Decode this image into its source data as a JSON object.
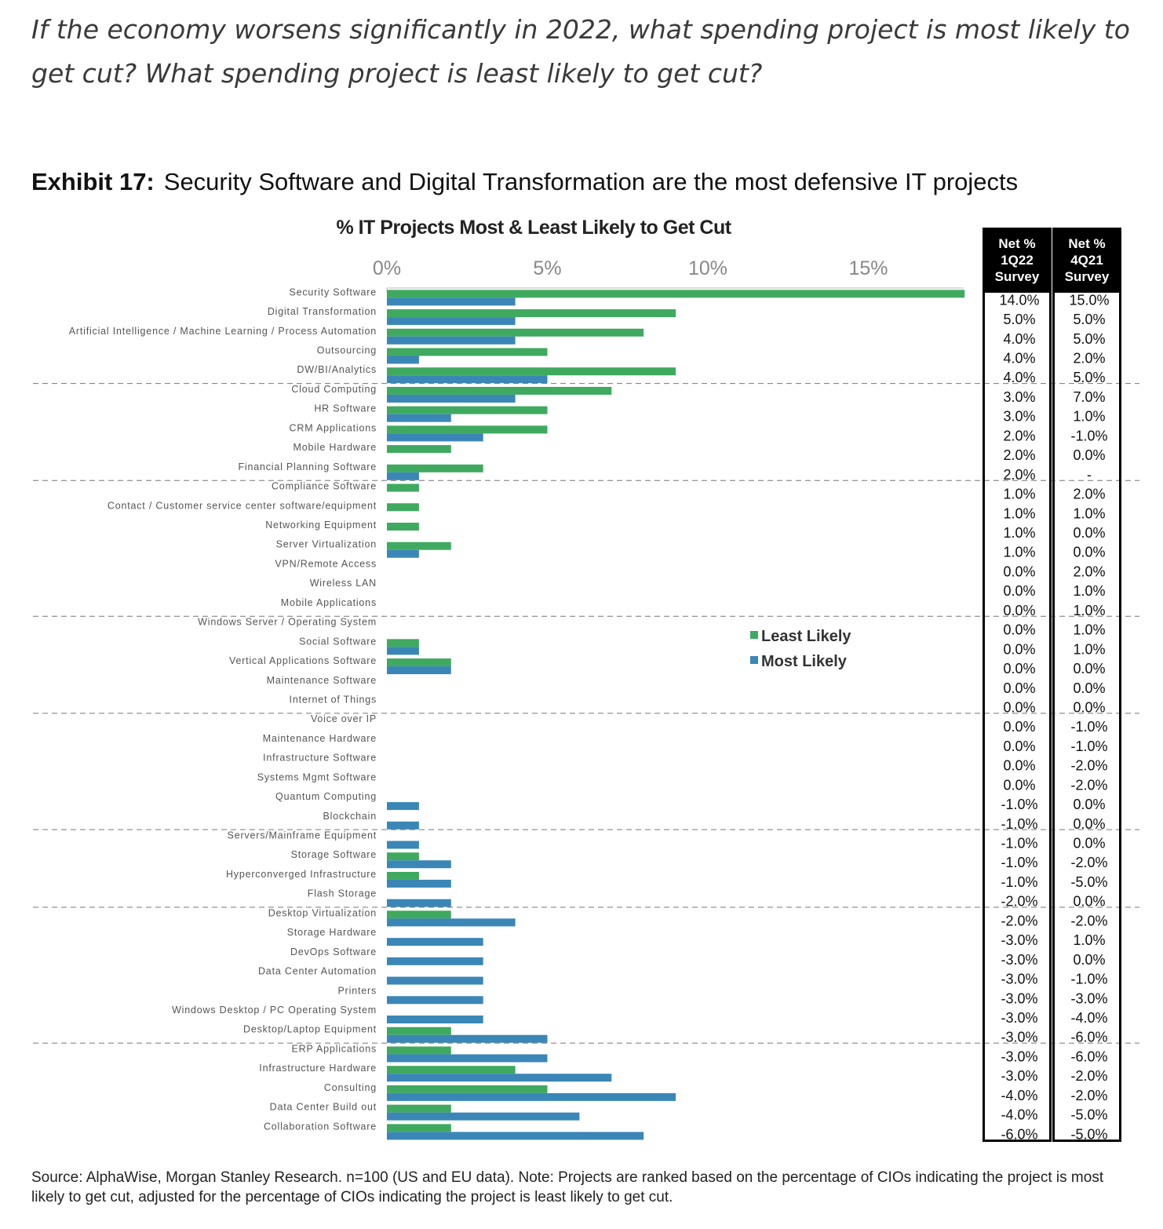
{
  "question": "If the economy worsens significantly in 2022, what spending project is most likely to get cut? What spending project is least likely to get cut?",
  "exhibit": {
    "number": "Exhibit 17:",
    "title": "Security Software and Digital Transformation are the most defensive IT projects"
  },
  "colors": {
    "least_likely": "#3faa5f",
    "most_likely": "#3a87b7"
  },
  "table": {
    "headers": [
      [
        "Net %",
        "1Q22",
        "Survey"
      ],
      [
        "Net %",
        "4Q21",
        "Survey"
      ]
    ]
  },
  "source": "Source: AlphaWise, Morgan Stanley Research. n=100 (US and EU data). Note: Projects are ranked based on the percentage of CIOs indicating the project is most likely to get cut, adjusted for the percentage of CIOs indicating the project is least likely to get cut.",
  "chart_data": {
    "type": "bar",
    "orientation": "horizontal",
    "title": "% IT Projects Most & Least Likely to Get Cut",
    "xlim": [
      0,
      18
    ],
    "xticks": [
      "0%",
      "5%",
      "10%",
      "15%"
    ],
    "xtick_values": [
      0,
      5,
      10,
      15
    ],
    "legend_position": "center-right",
    "group_separators_after": [
      5,
      10,
      17,
      22,
      28,
      32,
      39
    ],
    "categories": [
      "Security Software",
      "Digital Transformation",
      "Artificial Intelligence / Machine Learning / Process Automation",
      "Outsourcing",
      "DW/BI/Analytics",
      "Cloud Computing",
      "HR Software",
      "CRM Applications",
      "Mobile Hardware",
      "Financial Planning Software",
      "Compliance Software",
      "Contact / Customer service center software/equipment",
      "Networking Equipment",
      "Server Virtualization",
      "VPN/Remote Access",
      "Wireless LAN",
      "Mobile Applications",
      "Windows Server / Operating System",
      "Social Software",
      "Vertical Applications Software",
      "Maintenance Software",
      "Internet of Things",
      "Voice over IP",
      "Maintenance Hardware",
      "Infrastructure Software",
      "Systems Mgmt Software",
      "Quantum Computing",
      "Blockchain",
      "Servers/Mainframe Equipment",
      "Storage Software",
      "Hyperconverged Infrastructure",
      "Flash Storage",
      "Desktop Virtualization",
      "Storage Hardware",
      "DevOps Software",
      "Data Center Automation",
      "Printers",
      "Windows Desktop / PC Operating System",
      "Desktop/Laptop Equipment",
      "ERP Applications",
      "Infrastructure Hardware",
      "Consulting",
      "Data Center Build out",
      "Collaboration Software"
    ],
    "series": [
      {
        "name": "Least Likely",
        "values": [
          18,
          9,
          8,
          5,
          9,
          7,
          5,
          5,
          2,
          3,
          1,
          1,
          1,
          2,
          0,
          0,
          0,
          0,
          1,
          2,
          0,
          0,
          0,
          0,
          0,
          0,
          0,
          0,
          0,
          1,
          1,
          0,
          2,
          0,
          0,
          0,
          0,
          0,
          2,
          2,
          4,
          5,
          2,
          2
        ]
      },
      {
        "name": "Most Likely",
        "values": [
          4,
          4,
          4,
          1,
          5,
          4,
          2,
          3,
          0,
          1,
          0,
          0,
          0,
          1,
          0,
          0,
          0,
          0,
          1,
          2,
          0,
          0,
          0,
          0,
          0,
          0,
          1,
          1,
          1,
          2,
          2,
          2,
          4,
          3,
          3,
          3,
          3,
          3,
          5,
          5,
          7,
          9,
          6,
          8
        ]
      }
    ],
    "net_1q22": [
      "14.0%",
      "5.0%",
      "4.0%",
      "4.0%",
      "4.0%",
      "3.0%",
      "3.0%",
      "2.0%",
      "2.0%",
      "2.0%",
      "1.0%",
      "1.0%",
      "1.0%",
      "1.0%",
      "0.0%",
      "0.0%",
      "0.0%",
      "0.0%",
      "0.0%",
      "0.0%",
      "0.0%",
      "0.0%",
      "0.0%",
      "0.0%",
      "0.0%",
      "0.0%",
      "-1.0%",
      "-1.0%",
      "-1.0%",
      "-1.0%",
      "-1.0%",
      "-2.0%",
      "-2.0%",
      "-3.0%",
      "-3.0%",
      "-3.0%",
      "-3.0%",
      "-3.0%",
      "-3.0%",
      "-3.0%",
      "-3.0%",
      "-4.0%",
      "-4.0%",
      "-6.0%"
    ],
    "net_4q21": [
      "15.0%",
      "5.0%",
      "5.0%",
      "2.0%",
      "5.0%",
      "7.0%",
      "1.0%",
      "-1.0%",
      "0.0%",
      "-",
      "2.0%",
      "1.0%",
      "0.0%",
      "0.0%",
      "2.0%",
      "1.0%",
      "1.0%",
      "1.0%",
      "1.0%",
      "0.0%",
      "0.0%",
      "0.0%",
      "-1.0%",
      "-1.0%",
      "-2.0%",
      "-2.0%",
      "0.0%",
      "0.0%",
      "0.0%",
      "-2.0%",
      "-5.0%",
      "0.0%",
      "-2.0%",
      "1.0%",
      "0.0%",
      "-1.0%",
      "-3.0%",
      "-4.0%",
      "-6.0%",
      "-6.0%",
      "-2.0%",
      "-2.0%",
      "-5.0%",
      "-5.0%"
    ]
  }
}
